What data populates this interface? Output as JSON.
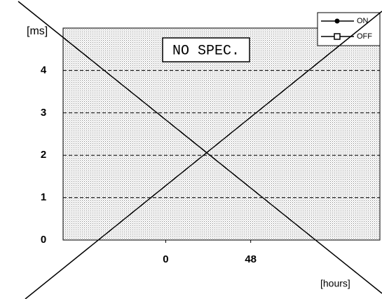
{
  "chart_data": {
    "type": "line",
    "y_label": "[ms]",
    "x_label": "[hours]",
    "annotation": "NO SPEC.",
    "x": [],
    "series": [
      {
        "name": "ON",
        "color": "#000000",
        "marker": "circle",
        "values": []
      },
      {
        "name": "OFF",
        "color": "#000000",
        "marker": "square",
        "values": []
      }
    ],
    "xlim": [
      -58,
      121
    ],
    "xticks": [
      0,
      48
    ],
    "ylim": [
      0,
      5
    ],
    "yticks": [
      0,
      1,
      2,
      3,
      4
    ],
    "grid": true,
    "legend": "top-right"
  }
}
